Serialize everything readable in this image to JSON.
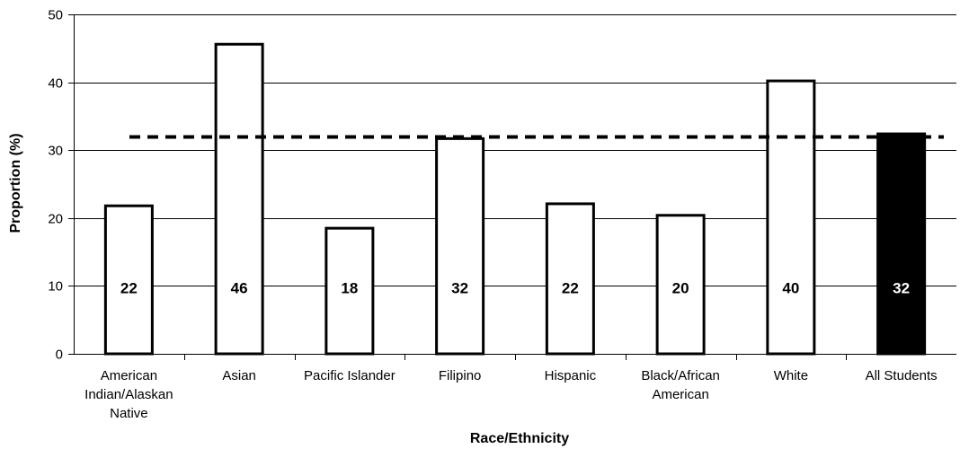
{
  "chart_data": {
    "type": "bar",
    "title": "",
    "xlabel": "Race/Ethnicity",
    "ylabel": "Proportion (%)",
    "ylim": [
      0,
      50
    ],
    "yticks": [
      0,
      10,
      20,
      30,
      40,
      50
    ],
    "ytick_labels": [
      "0",
      "10",
      "20",
      "30",
      "40",
      "50"
    ],
    "grid": "horizontal",
    "categories": [
      [
        "American",
        "Indian/Alaskan",
        "Native"
      ],
      [
        "Asian"
      ],
      [
        "Pacific Islander"
      ],
      [
        "Filipino"
      ],
      [
        "Hispanic"
      ],
      [
        "Black/African",
        "American"
      ],
      [
        "White"
      ],
      [
        "All Students"
      ]
    ],
    "values": [
      21.8,
      45.6,
      18.5,
      31.7,
      22.1,
      20.4,
      40.2,
      32.4
    ],
    "data_labels": [
      "22",
      "46",
      "18",
      "32",
      "22",
      "20",
      "40",
      "32"
    ],
    "bar_fills": [
      "#ffffff",
      "#ffffff",
      "#ffffff",
      "#ffffff",
      "#ffffff",
      "#ffffff",
      "#ffffff",
      "#000000"
    ],
    "label_colors": [
      "#000000",
      "#000000",
      "#000000",
      "#000000",
      "#000000",
      "#000000",
      "#000000",
      "#ffffff"
    ],
    "reference_line": {
      "value": 32,
      "style": "dashed"
    }
  }
}
